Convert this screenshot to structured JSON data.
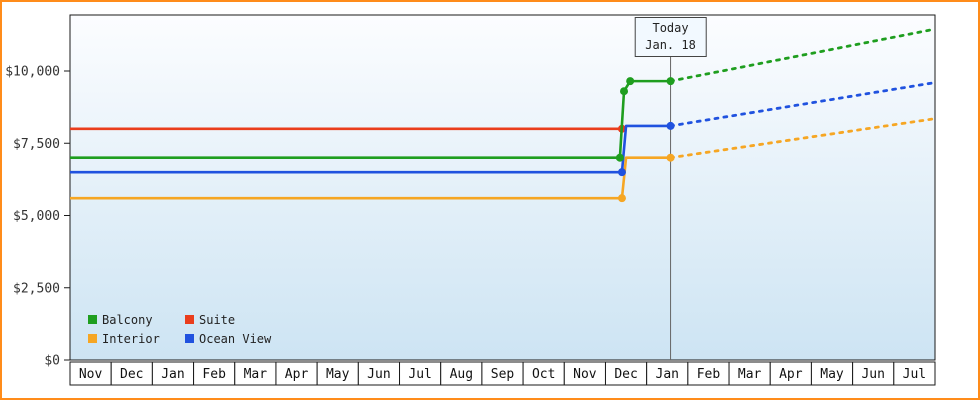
{
  "window": {
    "border_color": "#ff8c1a",
    "background": "#ffffff"
  },
  "today_box": {
    "line1": "Today",
    "line2": "Jan. 18"
  },
  "legend": {
    "items": [
      {
        "label": "Balcony",
        "color": "#1f9e1f"
      },
      {
        "label": "Suite",
        "color": "#ea3d1c"
      },
      {
        "label": "Interior",
        "color": "#f6a623"
      },
      {
        "label": "Ocean View",
        "color": "#2052df"
      }
    ]
  },
  "chart_data": {
    "type": "line",
    "description": "Cruise cabin price history by category; flat historical prices, step change in mid-December, dotted forecast lines after today (Jan. 18). Suite line ends (no forecast).",
    "x_unit": "month index from first column (Nov); 21 monthly columns",
    "x_categories": [
      "Nov",
      "Dec",
      "Jan",
      "Feb",
      "Mar",
      "Apr",
      "May",
      "Jun",
      "Jul",
      "Aug",
      "Sep",
      "Oct",
      "Nov",
      "Dec",
      "Jan",
      "Feb",
      "Mar",
      "Apr",
      "May",
      "Jun",
      "Jul"
    ],
    "y_ticks": [
      {
        "value": 0,
        "label": "$0"
      },
      {
        "value": 2500,
        "label": "$2,500"
      },
      {
        "value": 5000,
        "label": "$5,000"
      },
      {
        "value": 7500,
        "label": "$7,500"
      },
      {
        "value": 10000,
        "label": "$10,000"
      }
    ],
    "y_max_visible": 11950,
    "grid": false,
    "legend_position": "bottom-left-inside",
    "plot_bg": [
      "#fcfdff",
      "#cde4f3"
    ],
    "today": {
      "label": "Today",
      "date": "Jan. 18",
      "month_index": 14.58
    },
    "series": [
      {
        "name": "Suite",
        "color": "#ea3d1c",
        "solid": [
          [
            0,
            8000
          ],
          [
            13.4,
            8000
          ]
        ],
        "markers": [
          [
            13.4,
            8000
          ]
        ],
        "dotted": []
      },
      {
        "name": "Interior",
        "color": "#f6a623",
        "solid": [
          [
            0,
            5600
          ],
          [
            13.4,
            5600
          ],
          [
            13.5,
            7000
          ],
          [
            14.58,
            7000
          ]
        ],
        "markers": [
          [
            13.4,
            5600
          ],
          [
            14.58,
            7000
          ]
        ],
        "dotted": [
          [
            14.58,
            7000
          ],
          [
            21,
            8350
          ]
        ]
      },
      {
        "name": "Ocean View",
        "color": "#2052df",
        "solid": [
          [
            0,
            6500
          ],
          [
            13.4,
            6500
          ],
          [
            13.5,
            8100
          ],
          [
            14.58,
            8100
          ]
        ],
        "markers": [
          [
            13.4,
            6500
          ],
          [
            14.58,
            8100
          ]
        ],
        "dotted": [
          [
            14.58,
            8100
          ],
          [
            21,
            9600
          ]
        ]
      },
      {
        "name": "Balcony",
        "color": "#1f9e1f",
        "solid": [
          [
            0,
            7000
          ],
          [
            13.35,
            7000
          ],
          [
            13.45,
            9300
          ],
          [
            13.6,
            9650
          ],
          [
            14.58,
            9650
          ]
        ],
        "markers": [
          [
            13.35,
            7000
          ],
          [
            13.45,
            9300
          ],
          [
            13.6,
            9650
          ],
          [
            14.58,
            9650
          ]
        ],
        "dotted": [
          [
            14.58,
            9650
          ],
          [
            21,
            11450
          ]
        ]
      }
    ]
  }
}
